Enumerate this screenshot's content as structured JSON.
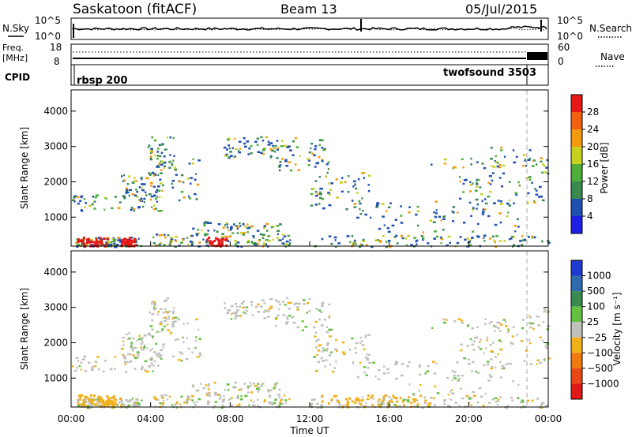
{
  "header": {
    "station": "Saskatoon (fitACF)",
    "beam": "Beam 13",
    "date": "05/Jul/2015"
  },
  "noise_panel": {
    "left_label": "N.Sky",
    "right_label": "N.Search",
    "left_ticks": [
      "10^5",
      "10^0"
    ],
    "right_ticks": [
      "10^5",
      "10^0"
    ]
  },
  "freq_panel": {
    "left_label_1": "Freq.",
    "left_label_2": "[MHz]",
    "right_label": "Nave",
    "left_ticks": [
      "18",
      "8"
    ],
    "right_ticks": [
      "60",
      "0"
    ]
  },
  "cpid_panel": {
    "label": "CPID",
    "program_1": "rbsp 200",
    "program_2": "twofsound 3503"
  },
  "chart_data": [
    {
      "type": "heatmap",
      "title": "",
      "ylabel": "Slant Range [km]",
      "xlabel": "",
      "ylim": [
        180,
        4600
      ],
      "y_ticks": [
        "1000",
        "2000",
        "3000",
        "4000"
      ],
      "colorbar_label": "Power [dB]",
      "colorbar_ticks": [
        "4",
        "8",
        "12",
        "16",
        "20",
        "24",
        "28"
      ],
      "colorbar_range": [
        0,
        30
      ],
      "colors": [
        "#1e1ee8",
        "#2050b0",
        "#3a8a50",
        "#4fae3a",
        "#c8d020",
        "#f29a10",
        "#f06010",
        "#e81818"
      ]
    },
    {
      "type": "heatmap",
      "title": "",
      "ylabel": "Slant Range [km]",
      "xlabel": "Time UT",
      "ylim": [
        180,
        4600
      ],
      "y_ticks": [
        "1000",
        "2000",
        "3000",
        "4000"
      ],
      "x_ticks": [
        "00:00",
        "04:00",
        "08:00",
        "12:00",
        "16:00",
        "20:00",
        "00:00"
      ],
      "colorbar_label": "Velocity [m s⁻¹]",
      "colorbar_ticks": [
        "1000",
        "500",
        "100",
        "25",
        "−25",
        "−100",
        "−500",
        "−1000"
      ],
      "colors": [
        "#1e3ad0",
        "#2f6ab0",
        "#3a8a50",
        "#64c040",
        "#c0c0bc",
        "#f2b018",
        "#f07a10",
        "#e84818",
        "#e01818"
      ]
    }
  ]
}
